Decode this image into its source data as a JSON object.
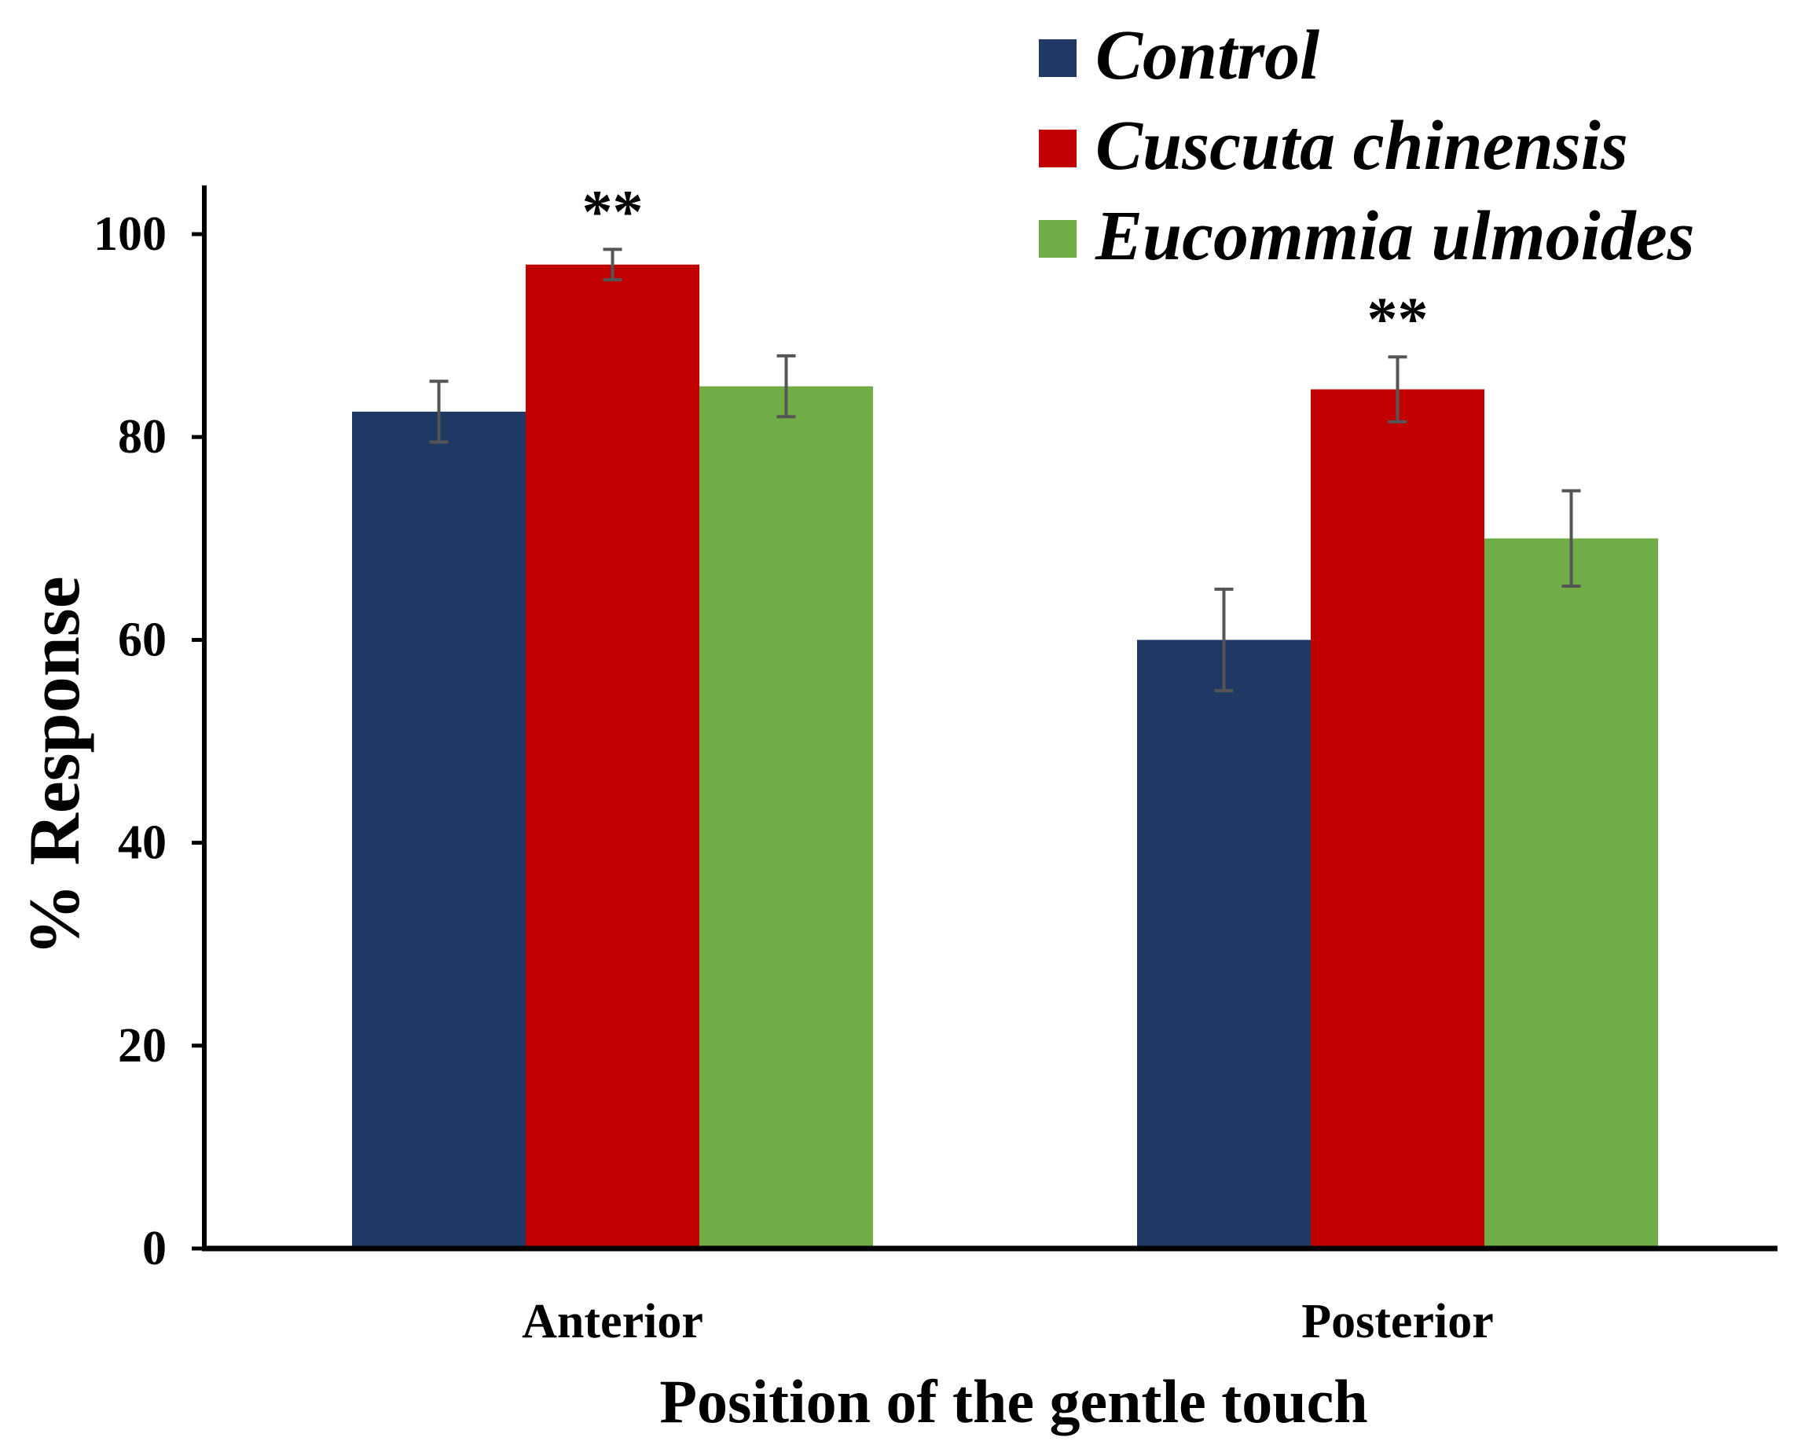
{
  "chart_data": {
    "type": "bar",
    "title": "",
    "xlabel": "Position of the gentle touch",
    "ylabel": "% Response",
    "ylim": [
      0,
      100
    ],
    "yticks": [
      "0",
      "20",
      "40",
      "60",
      "80",
      "100"
    ],
    "categories": [
      "Anterior",
      "Posterior"
    ],
    "series": [
      {
        "name": "Control",
        "color": "#203864",
        "values": [
          82.5,
          60
        ],
        "errors": [
          3,
          5
        ],
        "significance": [
          "",
          ""
        ]
      },
      {
        "name": "Cuscuta chinensis",
        "color": "#C00000",
        "values": [
          97,
          84.7
        ],
        "errors": [
          1.5,
          3.2
        ],
        "significance": [
          "**",
          "**"
        ]
      },
      {
        "name": "Eucommia ulmoides",
        "color": "#70AD47",
        "values": [
          85,
          70
        ],
        "errors": [
          3,
          4.7
        ],
        "significance": [
          "",
          ""
        ]
      }
    ],
    "legend_position": "top-right",
    "grid": false
  },
  "colors": {
    "axis": "#000000",
    "error_bar": "#555555"
  }
}
